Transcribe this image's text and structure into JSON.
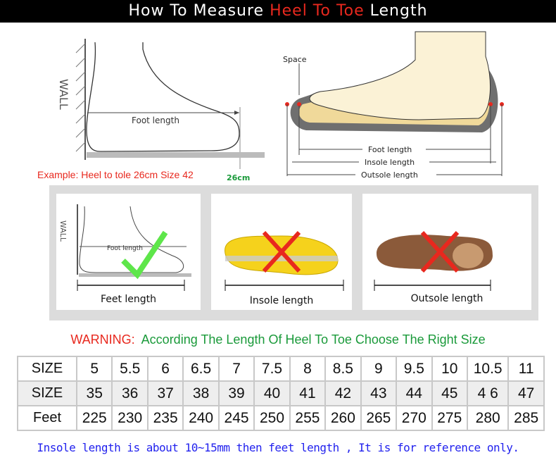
{
  "title": {
    "part1": "How To Measure ",
    "highlight": "Heel To Toe",
    "part2": " Length"
  },
  "top_left": {
    "wall": "WALL",
    "foot_length": "Foot length",
    "example": "Example: Heel to tole 26cm Size 42",
    "mark": "26cm"
  },
  "top_right": {
    "space": "Space",
    "foot_length": "Foot length",
    "insole_length": "Insole length",
    "outsole_length": "Outsole length"
  },
  "cards": [
    {
      "caption": "Feet length",
      "wall": "WALL",
      "inner": "Foot length",
      "status": "correct"
    },
    {
      "caption": "Insole length",
      "status": "wrong"
    },
    {
      "caption": "Outsole length",
      "status": "wrong"
    }
  ],
  "warning": {
    "label": "WARNING:",
    "text": "According The Length Of Heel To Toe Choose The Right Size"
  },
  "table": {
    "rows": [
      {
        "header": "SIZE",
        "values": [
          "5",
          "5.5",
          "6",
          "6.5",
          "7",
          "7.5",
          "8",
          "8.5",
          "9",
          "9.5",
          "10",
          "10.5",
          "11"
        ]
      },
      {
        "header": "SIZE",
        "values": [
          "35",
          "36",
          "37",
          "38",
          "39",
          "40",
          "41",
          "42",
          "43",
          "44",
          "45",
          "4 6",
          "47"
        ]
      },
      {
        "header": "Feet",
        "values": [
          "225",
          "230",
          "235",
          "240",
          "245",
          "250",
          "255",
          "260",
          "265",
          "270",
          "275",
          "280",
          "285"
        ]
      }
    ]
  },
  "footer": "Insole length is about 10~15mm then feet length , It is for reference only.",
  "colors": {
    "accent": "#e8281e",
    "green": "#1a9a3a",
    "blue": "#2222ee"
  }
}
